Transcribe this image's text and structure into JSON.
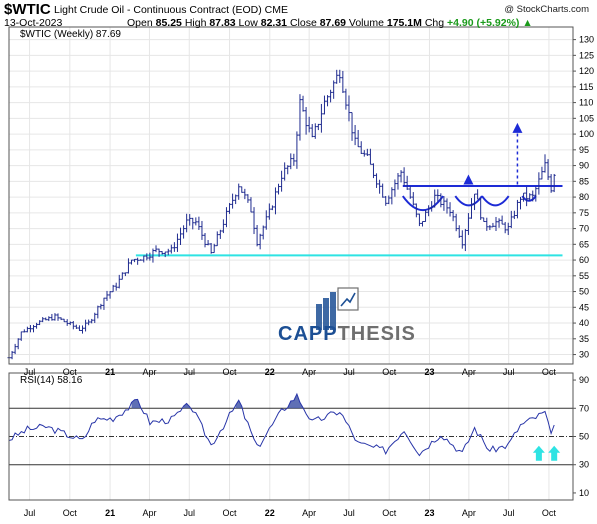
{
  "header": {
    "symbol": "$WTIC",
    "description": "Light Crude Oil - Continuous Contract (EOD) CME",
    "copyright": "@ StockCharts.com",
    "date": "13-Oct-2023",
    "open_label": "Open",
    "open": "85.25",
    "high_label": "High",
    "high": "87.83",
    "low_label": "Low",
    "low": "82.31",
    "close_label": "Close",
    "close": "87.69",
    "volume_label": "Volume",
    "volume": "175.1M",
    "chg_label": "Chg",
    "chg": "+4.90 (+5.92%)",
    "chg_arrow": "▲"
  },
  "price_legend": "$WTIC (Weekly) 87.69",
  "rsi_legend": "RSI(14) 58.16",
  "watermark": {
    "text_blue": "CAPP",
    "text_gray": "THESIS"
  },
  "colors": {
    "price": "#1f2b8f",
    "annot": "#1d2bd6",
    "support": "#2ee3e3",
    "rsi": "#2835a8",
    "rsi_fill": "#4457a8",
    "cyan_arrow": "#2ee3e3",
    "grid": "#e6e6e6",
    "green": "#1a9a1a"
  },
  "chart_data": [
    {
      "type": "ohlc",
      "title": "$WTIC (Weekly) 87.69",
      "x_tick_labels": [
        "Jul",
        "Oct",
        "21",
        "Apr",
        "Jul",
        "Oct",
        "22",
        "Apr",
        "Jul",
        "Oct",
        "23",
        "Apr",
        "Jul",
        "Oct"
      ],
      "x_tick_dates": [
        "2020-07",
        "2020-10",
        "2021-01",
        "2021-04",
        "2021-07",
        "2021-10",
        "2022-01",
        "2022-04",
        "2022-07",
        "2022-10",
        "2023-01",
        "2023-04",
        "2023-07",
        "2023-10"
      ],
      "y_ticks": [
        30,
        35,
        40,
        45,
        50,
        55,
        60,
        65,
        70,
        75,
        80,
        85,
        90,
        95,
        100,
        105,
        110,
        115,
        120,
        125,
        130
      ],
      "ylim": [
        27,
        134
      ],
      "close_anchors": [
        [
          "2020-05-15",
          29
        ],
        [
          "2020-06-12",
          37
        ],
        [
          "2020-07-17",
          40
        ],
        [
          "2020-08-28",
          42
        ],
        [
          "2020-09-25",
          40
        ],
        [
          "2020-10-23",
          38
        ],
        [
          "2020-11-13",
          40
        ],
        [
          "2020-12-18",
          48
        ],
        [
          "2021-01-15",
          52
        ],
        [
          "2021-02-19",
          60
        ],
        [
          "2021-03-19",
          61
        ],
        [
          "2021-04-16",
          63
        ],
        [
          "2021-05-21",
          63
        ],
        [
          "2021-06-25",
          72
        ],
        [
          "2021-07-16",
          72
        ],
        [
          "2021-08-20",
          62
        ],
        [
          "2021-09-17",
          72
        ],
        [
          "2021-10-22",
          84
        ],
        [
          "2021-11-19",
          76
        ],
        [
          "2021-12-03",
          66
        ],
        [
          "2021-12-31",
          75
        ],
        [
          "2022-01-28",
          87
        ],
        [
          "2022-02-25",
          92
        ],
        [
          "2022-03-11",
          110
        ],
        [
          "2022-04-08",
          98
        ],
        [
          "2022-05-06",
          110
        ],
        [
          "2022-06-10",
          120
        ],
        [
          "2022-07-15",
          97
        ],
        [
          "2022-08-12",
          92
        ],
        [
          "2022-09-23",
          79
        ],
        [
          "2022-10-28",
          88
        ],
        [
          "2022-11-18",
          80
        ],
        [
          "2022-12-09",
          71
        ],
        [
          "2023-01-13",
          80
        ],
        [
          "2023-02-17",
          76
        ],
        [
          "2023-03-17",
          66
        ],
        [
          "2023-04-14",
          82
        ],
        [
          "2023-05-05",
          71
        ],
        [
          "2023-06-02",
          72
        ],
        [
          "2023-06-30",
          70
        ],
        [
          "2023-07-28",
          80
        ],
        [
          "2023-08-25",
          80
        ],
        [
          "2023-09-22",
          90
        ],
        [
          "2023-10-06",
          83
        ],
        [
          "2023-10-13",
          87.69
        ]
      ],
      "annotations": {
        "support_line": {
          "value": 61.5,
          "from": "2021-03",
          "to": "2023-11"
        },
        "resistance_line": {
          "value": 83.5,
          "from": "2022-11",
          "to": "2023-11"
        },
        "arcs": [
          [
            "2022-11",
            "2023-02"
          ],
          [
            "2023-03",
            "2023-05"
          ],
          [
            "2023-05",
            "2023-07"
          ],
          [
            "2023-08",
            "2023-09"
          ]
        ],
        "dashed_arrow": {
          "date": "2023-07-21",
          "from": 84,
          "to": 101
        },
        "triangle": {
          "date": "2023-03-31",
          "value": 84
        }
      }
    },
    {
      "type": "line",
      "title": "RSI(14) 58.16",
      "y_ticks": [
        10,
        30,
        50,
        70,
        90
      ],
      "ylim": [
        5,
        95
      ],
      "reference_lines": [
        30,
        50,
        70
      ],
      "anchors": [
        [
          "2020-05-15",
          48
        ],
        [
          "2020-06-26",
          55
        ],
        [
          "2020-08-07",
          57
        ],
        [
          "2020-09-11",
          53
        ],
        [
          "2020-10-30",
          47
        ],
        [
          "2020-11-27",
          62
        ],
        [
          "2021-01-08",
          63
        ],
        [
          "2021-02-19",
          72
        ],
        [
          "2021-03-05",
          76
        ],
        [
          "2021-04-02",
          60
        ],
        [
          "2021-05-21",
          62
        ],
        [
          "2021-07-02",
          73
        ],
        [
          "2021-08-20",
          44
        ],
        [
          "2021-10-22",
          75
        ],
        [
          "2021-12-03",
          42
        ],
        [
          "2022-01-28",
          68
        ],
        [
          "2022-03-04",
          79
        ],
        [
          "2022-04-08",
          60
        ],
        [
          "2022-06-10",
          68
        ],
        [
          "2022-07-22",
          45
        ],
        [
          "2022-09-23",
          40
        ],
        [
          "2022-11-04",
          55
        ],
        [
          "2022-12-09",
          38
        ],
        [
          "2023-01-27",
          52
        ],
        [
          "2023-03-17",
          38
        ],
        [
          "2023-04-14",
          56
        ],
        [
          "2023-05-19",
          40
        ],
        [
          "2023-06-30",
          44
        ],
        [
          "2023-07-28",
          58
        ],
        [
          "2023-09-22",
          67
        ],
        [
          "2023-10-06",
          50
        ],
        [
          "2023-10-13",
          58.16
        ]
      ]
    }
  ]
}
